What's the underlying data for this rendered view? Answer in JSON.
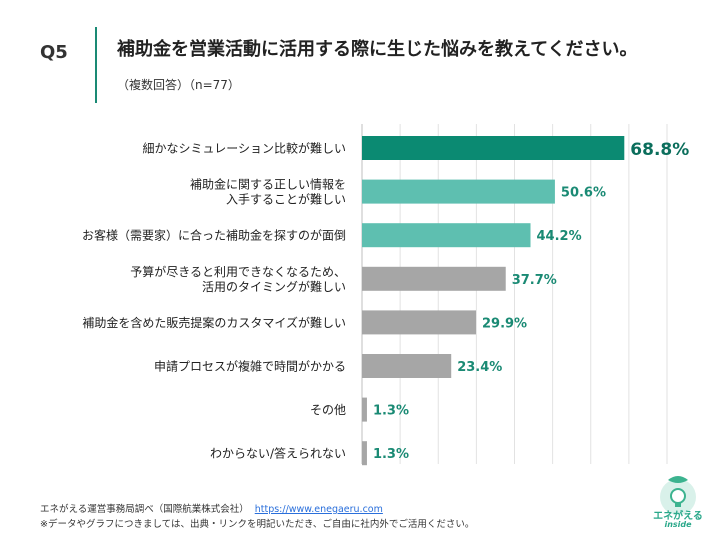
{
  "header": {
    "q_label": "Q5",
    "title": "補助金を営業活動に活用する際に生じた悩みを教えてください。",
    "subtitle": "（複数回答）（n=77）"
  },
  "chart_data": {
    "type": "bar",
    "orientation": "horizontal",
    "title": "補助金を営業活動に活用する際に生じた悩みを教えてください。",
    "categories": [
      "細かなシミュレーション比較が難しい",
      "補助金に関する正しい情報を\n入手することが難しい",
      "お客様（需要家）に合った補助金を探すのが面倒",
      "予算が尽きると利用できなくなるため、\n活用のタイミングが難しい",
      "補助金を含めた販売提案のカスタマイズが難しい",
      "申請プロセスが複雑で時間がかかる",
      "その他",
      "わからない/答えられない"
    ],
    "values": [
      68.8,
      50.6,
      44.2,
      37.7,
      29.9,
      23.4,
      1.3,
      1.3
    ],
    "value_labels": [
      "68.8%",
      "50.6%",
      "44.2%",
      "37.7%",
      "29.9%",
      "23.4%",
      "1.3%",
      "1.3%"
    ],
    "xlim": [
      0,
      80
    ],
    "xgrid": true,
    "colors": {
      "top": "#0b8a72",
      "second_tier": "#5ebfb0",
      "rest": "#a6a6a6",
      "top_label": "#0b6e5c",
      "second_label": "#1a8a74",
      "rest_label": "#1a8a74",
      "grid": "#e2e2e2",
      "axis": "#bfbfbf"
    }
  },
  "footer": {
    "source": "エネがえる運営事務局調べ（国際航業株式会社）",
    "url": "https://www.enegaeru.com",
    "note": "※データやグラフにつきましては、出典・リンクを明記いただき、ご自由に社内外でご活用ください。"
  },
  "logo": {
    "name": "エネがえる",
    "sub": "inside",
    "icon": "leaf-bulb-icon"
  }
}
